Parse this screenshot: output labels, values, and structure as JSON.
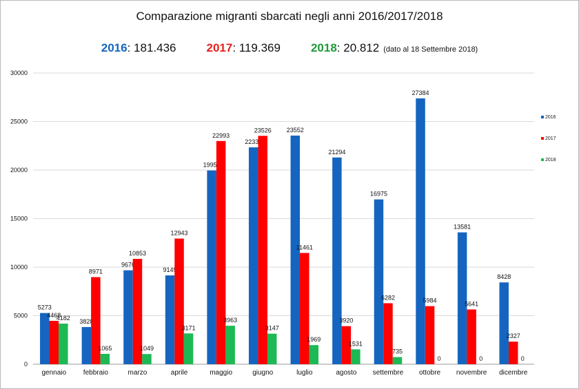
{
  "chart_data": {
    "type": "bar",
    "title": "Comparazione migranti sbarcati negli anni 2016/2017/2018",
    "totals": [
      {
        "year": "2016",
        "value": "181.436",
        "color": "#1565C0"
      },
      {
        "year": "2017",
        "value": "119.369",
        "color": "#E8201E"
      },
      {
        "year": "2018",
        "value": "20.812",
        "color": "#1E9A3A"
      }
    ],
    "note": "(dato al 18 Settembre 2018)",
    "categories": [
      "gennaio",
      "febbraio",
      "marzo",
      "aprile",
      "maggio",
      "giugno",
      "luglio",
      "agosto",
      "settembre",
      "ottobre",
      "novembre",
      "dicembre"
    ],
    "series": [
      {
        "name": "2016",
        "color": "#1565C0",
        "values": [
          5273,
          3828,
          9676,
          9149,
          19957,
          22339,
          23552,
          21294,
          16975,
          27384,
          13581,
          8428
        ]
      },
      {
        "name": "2017",
        "color": "#FF0000",
        "values": [
          4468,
          8971,
          10853,
          12943,
          22993,
          23526,
          11461,
          3920,
          6282,
          5984,
          5641,
          2327
        ]
      },
      {
        "name": "2018",
        "color": "#1DB954",
        "values": [
          4182,
          1065,
          1049,
          3171,
          3963,
          3147,
          1969,
          1531,
          735,
          0,
          0,
          0
        ]
      }
    ],
    "yticks": [
      "0",
      "5000",
      "10000",
      "15000",
      "20000",
      "25000",
      "30000"
    ],
    "ylim": [
      0,
      30000
    ],
    "grid": true,
    "legend_position": "right"
  }
}
